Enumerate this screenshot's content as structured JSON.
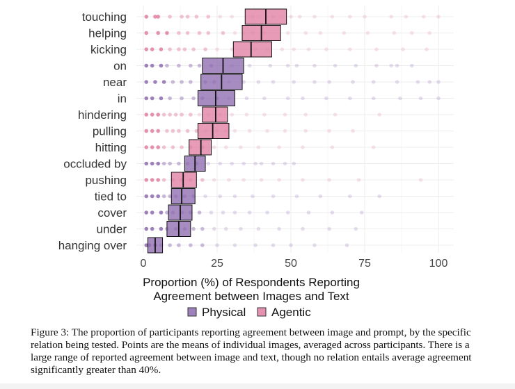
{
  "chart_data": {
    "type": "boxplot",
    "orientation": "horizontal",
    "xlabel_line1": "Proportion (%) of Respondents Reporting",
    "xlabel_line2": "Agreement between Images and Text",
    "xlim": [
      0,
      100
    ],
    "xticks": [
      0,
      25,
      50,
      75,
      100
    ],
    "grid": true,
    "legend_position": "bottom",
    "legend": [
      {
        "name": "Physical",
        "color": "#8e6bb0"
      },
      {
        "name": "Agentic",
        "color": "#e07fa2"
      }
    ],
    "categories": [
      {
        "name": "touching",
        "group": "Agentic",
        "q1": 34.5,
        "median": 41.5,
        "q3": 48.5
      },
      {
        "name": "helping",
        "group": "Agentic",
        "q1": 33.5,
        "median": 40.0,
        "q3": 46.5
      },
      {
        "name": "kicking",
        "group": "Agentic",
        "q1": 30.5,
        "median": 36.5,
        "q3": 43.5
      },
      {
        "name": "on",
        "group": "Physical",
        "q1": 20.0,
        "median": 27.0,
        "q3": 34.0
      },
      {
        "name": "near",
        "group": "Physical",
        "q1": 19.5,
        "median": 26.5,
        "q3": 33.5
      },
      {
        "name": "in",
        "group": "Physical",
        "q1": 18.5,
        "median": 24.5,
        "q3": 31.0
      },
      {
        "name": "hindering",
        "group": "Agentic",
        "q1": 20.0,
        "median": 24.5,
        "q3": 28.5
      },
      {
        "name": "pulling",
        "group": "Agentic",
        "q1": 18.5,
        "median": 23.5,
        "q3": 29.0
      },
      {
        "name": "hitting",
        "group": "Agentic",
        "q1": 15.5,
        "median": 19.5,
        "q3": 23.0
      },
      {
        "name": "occluded by",
        "group": "Physical",
        "q1": 14.0,
        "median": 17.5,
        "q3": 21.0
      },
      {
        "name": "pushing",
        "group": "Agentic",
        "q1": 9.5,
        "median": 13.5,
        "q3": 18.0
      },
      {
        "name": "tied to",
        "group": "Physical",
        "q1": 9.5,
        "median": 13.0,
        "q3": 17.5
      },
      {
        "name": "cover",
        "group": "Physical",
        "q1": 8.5,
        "median": 12.5,
        "q3": 16.5
      },
      {
        "name": "under",
        "group": "Physical",
        "q1": 8.0,
        "median": 12.0,
        "q3": 16.0
      },
      {
        "name": "hanging over",
        "group": "Physical",
        "q1": 1.5,
        "median": 4.0,
        "q3": 6.5
      }
    ],
    "points": {
      "touching": [
        1,
        4,
        5,
        9,
        13,
        15,
        18,
        22,
        26,
        30,
        37,
        44,
        50,
        53,
        58,
        64,
        70,
        75,
        84,
        89,
        95,
        100
      ],
      "helping": [
        1,
        5,
        8,
        12,
        15,
        19,
        22,
        27,
        31,
        34,
        37,
        41,
        49,
        55,
        60,
        68,
        76,
        85,
        91,
        97
      ],
      "kicking": [
        1,
        3,
        6,
        9,
        12,
        14,
        17,
        21,
        25,
        30,
        38,
        42,
        47,
        51,
        56,
        62,
        70,
        79,
        88,
        96
      ],
      "on": [
        1,
        3,
        6,
        8,
        12,
        16,
        19,
        23,
        30,
        36,
        43,
        49,
        52,
        58,
        65,
        72,
        79,
        84,
        86,
        91
      ],
      "near": [
        1,
        4,
        7,
        10,
        13,
        16,
        21,
        24,
        29,
        34,
        39,
        44,
        51,
        58,
        63,
        71,
        78,
        86,
        93,
        97,
        100
      ],
      "in": [
        1,
        3,
        6,
        9,
        13,
        17,
        20,
        25,
        29,
        35,
        41,
        49,
        54,
        62,
        70,
        78,
        87,
        94,
        100
      ],
      "hindering": [
        1,
        3,
        5,
        7,
        9,
        11,
        13,
        16,
        19,
        22,
        26,
        30,
        35,
        41,
        48,
        55,
        65,
        80
      ],
      "pulling": [
        1,
        3,
        5,
        8,
        10,
        12,
        15,
        18,
        21,
        25,
        28,
        31,
        36,
        42,
        48,
        55,
        63,
        71
      ],
      "hitting": [
        1,
        3,
        5,
        7,
        10,
        13,
        16,
        20,
        24,
        28,
        33,
        39,
        46,
        54,
        64,
        78
      ],
      "occluded by": [
        1,
        3,
        5,
        7,
        9,
        12,
        15,
        18,
        22,
        26,
        30,
        34,
        38,
        40,
        44,
        48,
        51
      ],
      "pushing": [
        1,
        3,
        5,
        7,
        10,
        13,
        16,
        20,
        24,
        29,
        34,
        40,
        46,
        54,
        63,
        73,
        94
      ],
      "tied to": [
        1,
        3,
        5,
        7,
        9,
        11,
        14,
        17,
        21,
        26,
        31,
        37,
        44,
        52,
        60,
        70,
        80
      ],
      "cover": [
        1,
        3,
        6,
        8,
        10,
        13,
        16,
        19,
        23,
        27,
        31,
        36,
        42,
        49,
        56,
        64,
        74
      ],
      "under": [
        1,
        3,
        6,
        8,
        11,
        14,
        17,
        20,
        24,
        28,
        33,
        39,
        46,
        54,
        63,
        72
      ],
      "hanging over": [
        1,
        2,
        4,
        6,
        9,
        12,
        16,
        20,
        25,
        31,
        38,
        44,
        50,
        58,
        69
      ]
    }
  },
  "caption": "Figure 3: The proportion of participants reporting agreement between image and prompt, by the specific relation being tested. Points are the means of individual images, averaged across participants. There is a large range of reported agreement between image and text, though no relation entails average agreement significantly greater than 40%."
}
